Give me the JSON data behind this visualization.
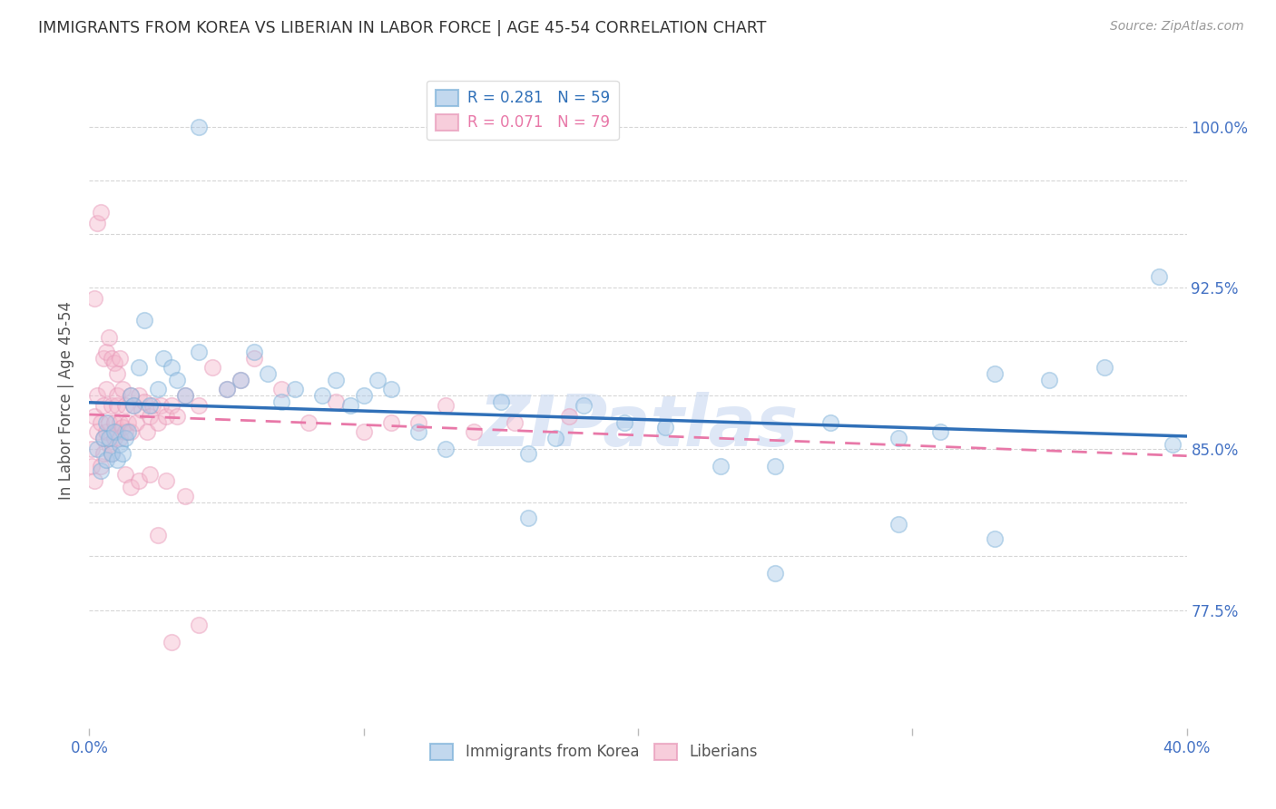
{
  "title": "IMMIGRANTS FROM KOREA VS LIBERIAN IN LABOR FORCE | AGE 45-54 CORRELATION CHART",
  "source": "Source: ZipAtlas.com",
  "ylabel": "In Labor Force | Age 45-54",
  "xmin": 0.0,
  "xmax": 0.4,
  "ymin": 0.72,
  "ymax": 1.025,
  "korea_R": 0.281,
  "korea_N": 59,
  "liberia_R": 0.071,
  "liberia_N": 79,
  "korea_color": "#a8c8e8",
  "liberia_color": "#f4b8cc",
  "korea_edge_color": "#7ab0d8",
  "liberia_edge_color": "#e898b8",
  "korea_line_color": "#3070b8",
  "liberia_line_color": "#e878a8",
  "watermark": "ZIPatlas",
  "watermark_color": "#c8d8f0",
  "background_color": "#ffffff",
  "title_color": "#333333",
  "axis_label_color": "#4472c4",
  "grid_color": "#cccccc",
  "right_ytick_labels": [
    "77.5%",
    "",
    "",
    "85.0%",
    "",
    "",
    "92.5%",
    "",
    "",
    "100.0%"
  ],
  "korea_x": [
    0.003,
    0.004,
    0.005,
    0.006,
    0.006,
    0.007,
    0.008,
    0.009,
    0.01,
    0.011,
    0.012,
    0.013,
    0.014,
    0.015,
    0.016,
    0.018,
    0.02,
    0.022,
    0.025,
    0.027,
    0.03,
    0.032,
    0.035,
    0.04,
    0.05,
    0.055,
    0.06,
    0.065,
    0.07,
    0.075,
    0.085,
    0.09,
    0.095,
    0.1,
    0.105,
    0.11,
    0.12,
    0.13,
    0.15,
    0.16,
    0.17,
    0.18,
    0.195,
    0.21,
    0.23,
    0.25,
    0.27,
    0.295,
    0.31,
    0.33,
    0.35,
    0.37,
    0.39,
    0.295,
    0.16,
    0.04,
    0.25,
    0.33,
    0.395
  ],
  "korea_y": [
    0.85,
    0.84,
    0.855,
    0.845,
    0.862,
    0.855,
    0.848,
    0.858,
    0.845,
    0.852,
    0.848,
    0.855,
    0.858,
    0.875,
    0.87,
    0.888,
    0.91,
    0.87,
    0.878,
    0.892,
    0.888,
    0.882,
    0.875,
    0.895,
    0.878,
    0.882,
    0.895,
    0.885,
    0.872,
    0.878,
    0.875,
    0.882,
    0.87,
    0.875,
    0.882,
    0.878,
    0.858,
    0.85,
    0.872,
    0.848,
    0.855,
    0.87,
    0.862,
    0.86,
    0.842,
    0.842,
    0.862,
    0.855,
    0.858,
    0.885,
    0.882,
    0.888,
    0.93,
    0.815,
    0.818,
    1.0,
    0.792,
    0.808,
    0.852
  ],
  "liberia_x": [
    0.001,
    0.001,
    0.002,
    0.002,
    0.003,
    0.003,
    0.004,
    0.004,
    0.005,
    0.005,
    0.005,
    0.006,
    0.006,
    0.007,
    0.007,
    0.008,
    0.008,
    0.009,
    0.009,
    0.01,
    0.01,
    0.01,
    0.011,
    0.011,
    0.012,
    0.012,
    0.013,
    0.013,
    0.014,
    0.015,
    0.015,
    0.016,
    0.017,
    0.018,
    0.019,
    0.02,
    0.021,
    0.022,
    0.023,
    0.025,
    0.026,
    0.028,
    0.03,
    0.032,
    0.035,
    0.04,
    0.045,
    0.05,
    0.055,
    0.06,
    0.07,
    0.08,
    0.09,
    0.1,
    0.11,
    0.12,
    0.13,
    0.14,
    0.155,
    0.175,
    0.002,
    0.003,
    0.004,
    0.005,
    0.006,
    0.007,
    0.008,
    0.009,
    0.01,
    0.011,
    0.013,
    0.015,
    0.018,
    0.022,
    0.028,
    0.035,
    0.04,
    0.025,
    0.03
  ],
  "liberia_y": [
    0.85,
    0.842,
    0.865,
    0.835,
    0.875,
    0.858,
    0.862,
    0.842,
    0.855,
    0.848,
    0.87,
    0.858,
    0.878,
    0.852,
    0.862,
    0.87,
    0.848,
    0.862,
    0.855,
    0.87,
    0.858,
    0.875,
    0.862,
    0.855,
    0.878,
    0.86,
    0.87,
    0.858,
    0.862,
    0.875,
    0.858,
    0.87,
    0.862,
    0.875,
    0.868,
    0.872,
    0.858,
    0.865,
    0.87,
    0.862,
    0.87,
    0.865,
    0.87,
    0.865,
    0.875,
    0.87,
    0.888,
    0.878,
    0.882,
    0.892,
    0.878,
    0.862,
    0.872,
    0.858,
    0.862,
    0.862,
    0.87,
    0.858,
    0.862,
    0.865,
    0.92,
    0.955,
    0.96,
    0.892,
    0.895,
    0.902,
    0.892,
    0.89,
    0.885,
    0.892,
    0.838,
    0.832,
    0.835,
    0.838,
    0.835,
    0.828,
    0.768,
    0.81,
    0.76
  ]
}
